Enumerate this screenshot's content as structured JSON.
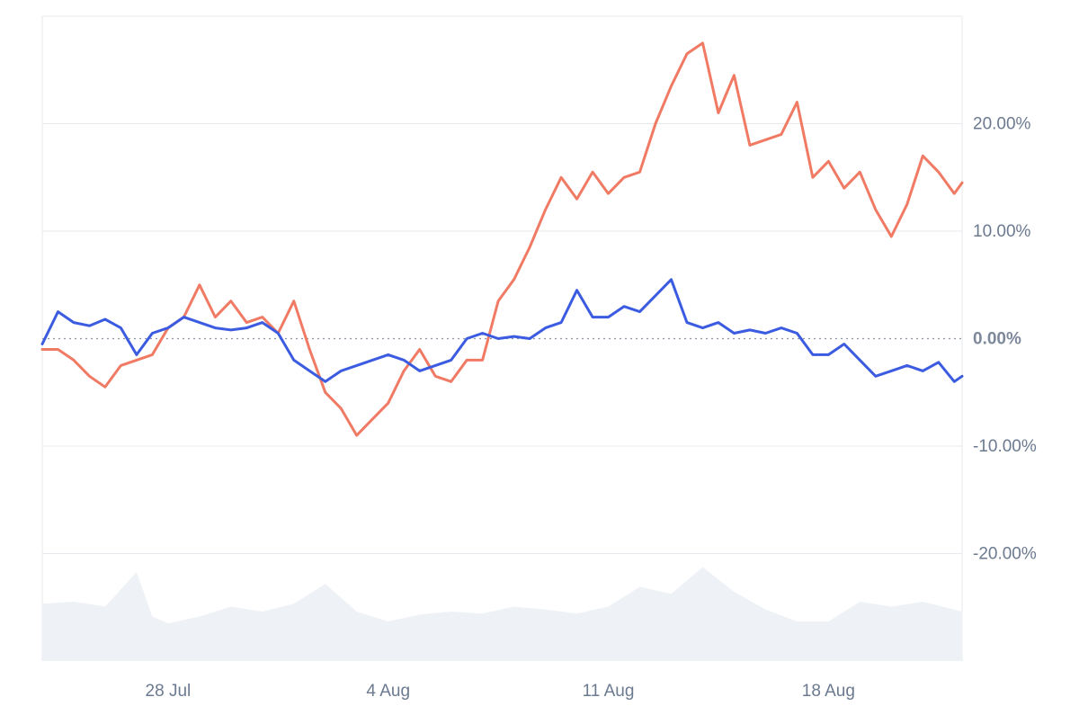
{
  "chart_data": {
    "type": "line",
    "title": "",
    "xlabel": "",
    "ylabel": "",
    "ylim": [
      -30,
      30
    ],
    "x_range": [
      "2024-07-24",
      "2024-08-22"
    ],
    "yticks": [
      20,
      10,
      0,
      -10,
      -20
    ],
    "ytick_labels": [
      "20.00%",
      "10.00%",
      "0.00%",
      "-10.00%",
      "-20.00%"
    ],
    "xticks": [
      "2024-07-28",
      "2024-08-04",
      "2024-08-11",
      "2024-08-18"
    ],
    "xtick_labels": [
      "28 Jul",
      "4 Aug",
      "11 Aug",
      "18 Aug"
    ],
    "grid": true,
    "zero_line": "dotted",
    "colors": {
      "series_1": "#3b5be0",
      "series_2": "#f07a63",
      "grid": "#e6e9ee",
      "tick_text": "#6b7a90",
      "volume_fill": "#eef1f5"
    },
    "series": [
      {
        "points": [
          [
            "2024-07-24T00:00",
            -0.5
          ],
          [
            "2024-07-24T12:00",
            2.5
          ],
          [
            "2024-07-25T00:00",
            1.5
          ],
          [
            "2024-07-25T12:00",
            1.2
          ],
          [
            "2024-07-26T00:00",
            1.8
          ],
          [
            "2024-07-26T12:00",
            1.0
          ],
          [
            "2024-07-27T00:00",
            -1.5
          ],
          [
            "2024-07-27T12:00",
            0.5
          ],
          [
            "2024-07-28T00:00",
            1.0
          ],
          [
            "2024-07-28T12:00",
            2.0
          ],
          [
            "2024-07-29T00:00",
            1.5
          ],
          [
            "2024-07-29T12:00",
            1.0
          ],
          [
            "2024-07-30T00:00",
            0.8
          ],
          [
            "2024-07-30T12:00",
            1.0
          ],
          [
            "2024-07-31T00:00",
            1.5
          ],
          [
            "2024-07-31T12:00",
            0.5
          ],
          [
            "2024-08-01T00:00",
            -2.0
          ],
          [
            "2024-08-01T12:00",
            -3.0
          ],
          [
            "2024-08-02T00:00",
            -4.0
          ],
          [
            "2024-08-02T12:00",
            -3.0
          ],
          [
            "2024-08-03T00:00",
            -2.5
          ],
          [
            "2024-08-03T12:00",
            -2.0
          ],
          [
            "2024-08-04T00:00",
            -1.5
          ],
          [
            "2024-08-04T12:00",
            -2.0
          ],
          [
            "2024-08-05T00:00",
            -3.0
          ],
          [
            "2024-08-05T12:00",
            -2.5
          ],
          [
            "2024-08-06T00:00",
            -2.0
          ],
          [
            "2024-08-06T12:00",
            0.0
          ],
          [
            "2024-08-07T00:00",
            0.5
          ],
          [
            "2024-08-07T12:00",
            0.0
          ],
          [
            "2024-08-08T00:00",
            0.2
          ],
          [
            "2024-08-08T12:00",
            0.0
          ],
          [
            "2024-08-09T00:00",
            1.0
          ],
          [
            "2024-08-09T12:00",
            1.5
          ],
          [
            "2024-08-10T00:00",
            4.5
          ],
          [
            "2024-08-10T12:00",
            2.0
          ],
          [
            "2024-08-11T00:00",
            2.0
          ],
          [
            "2024-08-11T12:00",
            3.0
          ],
          [
            "2024-08-12T00:00",
            2.5
          ],
          [
            "2024-08-12T12:00",
            4.0
          ],
          [
            "2024-08-13T00:00",
            5.5
          ],
          [
            "2024-08-13T12:00",
            1.5
          ],
          [
            "2024-08-14T00:00",
            1.0
          ],
          [
            "2024-08-14T12:00",
            1.5
          ],
          [
            "2024-08-15T00:00",
            0.5
          ],
          [
            "2024-08-15T12:00",
            0.8
          ],
          [
            "2024-08-16T00:00",
            0.5
          ],
          [
            "2024-08-16T12:00",
            1.0
          ],
          [
            "2024-08-17T00:00",
            0.5
          ],
          [
            "2024-08-17T12:00",
            -1.5
          ],
          [
            "2024-08-18T00:00",
            -1.5
          ],
          [
            "2024-08-18T12:00",
            -0.5
          ],
          [
            "2024-08-19T00:00",
            -2.0
          ],
          [
            "2024-08-19T12:00",
            -3.5
          ],
          [
            "2024-08-20T00:00",
            -3.0
          ],
          [
            "2024-08-20T12:00",
            -2.5
          ],
          [
            "2024-08-21T00:00",
            -3.0
          ],
          [
            "2024-08-21T12:00",
            -2.2
          ],
          [
            "2024-08-22T00:00",
            -4.0
          ],
          [
            "2024-08-22T06:00",
            -3.5
          ]
        ]
      },
      {
        "points": [
          [
            "2024-07-24T00:00",
            -1.0
          ],
          [
            "2024-07-24T12:00",
            -1.0
          ],
          [
            "2024-07-25T00:00",
            -2.0
          ],
          [
            "2024-07-25T12:00",
            -3.5
          ],
          [
            "2024-07-26T00:00",
            -4.5
          ],
          [
            "2024-07-26T12:00",
            -2.5
          ],
          [
            "2024-07-27T00:00",
            -2.0
          ],
          [
            "2024-07-27T12:00",
            -1.5
          ],
          [
            "2024-07-28T00:00",
            1.0
          ],
          [
            "2024-07-28T12:00",
            2.0
          ],
          [
            "2024-07-29T00:00",
            5.0
          ],
          [
            "2024-07-29T12:00",
            2.0
          ],
          [
            "2024-07-30T00:00",
            3.5
          ],
          [
            "2024-07-30T12:00",
            1.5
          ],
          [
            "2024-07-31T00:00",
            2.0
          ],
          [
            "2024-07-31T12:00",
            0.5
          ],
          [
            "2024-08-01T00:00",
            3.5
          ],
          [
            "2024-08-01T12:00",
            -1.0
          ],
          [
            "2024-08-02T00:00",
            -5.0
          ],
          [
            "2024-08-02T12:00",
            -6.5
          ],
          [
            "2024-08-03T00:00",
            -9.0
          ],
          [
            "2024-08-03T12:00",
            -7.5
          ],
          [
            "2024-08-04T00:00",
            -6.0
          ],
          [
            "2024-08-04T12:00",
            -3.0
          ],
          [
            "2024-08-05T00:00",
            -1.0
          ],
          [
            "2024-08-05T12:00",
            -3.5
          ],
          [
            "2024-08-06T00:00",
            -4.0
          ],
          [
            "2024-08-06T12:00",
            -2.0
          ],
          [
            "2024-08-07T00:00",
            -2.0
          ],
          [
            "2024-08-07T12:00",
            3.5
          ],
          [
            "2024-08-08T00:00",
            5.5
          ],
          [
            "2024-08-08T12:00",
            8.5
          ],
          [
            "2024-08-09T00:00",
            12.0
          ],
          [
            "2024-08-09T12:00",
            15.0
          ],
          [
            "2024-08-10T00:00",
            13.0
          ],
          [
            "2024-08-10T12:00",
            15.5
          ],
          [
            "2024-08-11T00:00",
            13.5
          ],
          [
            "2024-08-11T12:00",
            15.0
          ],
          [
            "2024-08-12T00:00",
            15.5
          ],
          [
            "2024-08-12T12:00",
            20.0
          ],
          [
            "2024-08-13T00:00",
            23.5
          ],
          [
            "2024-08-13T12:00",
            26.5
          ],
          [
            "2024-08-14T00:00",
            27.5
          ],
          [
            "2024-08-14T12:00",
            21.0
          ],
          [
            "2024-08-15T00:00",
            24.5
          ],
          [
            "2024-08-15T12:00",
            18.0
          ],
          [
            "2024-08-16T00:00",
            18.5
          ],
          [
            "2024-08-16T12:00",
            19.0
          ],
          [
            "2024-08-17T00:00",
            22.0
          ],
          [
            "2024-08-17T12:00",
            15.0
          ],
          [
            "2024-08-18T00:00",
            16.5
          ],
          [
            "2024-08-18T12:00",
            14.0
          ],
          [
            "2024-08-19T00:00",
            15.5
          ],
          [
            "2024-08-19T12:00",
            12.0
          ],
          [
            "2024-08-20T00:00",
            9.5
          ],
          [
            "2024-08-20T12:00",
            12.5
          ],
          [
            "2024-08-21T00:00",
            17.0
          ],
          [
            "2024-08-21T12:00",
            15.5
          ],
          [
            "2024-08-22T00:00",
            13.5
          ],
          [
            "2024-08-22T06:00",
            14.5
          ]
        ]
      }
    ],
    "volume_area": {
      "ylim": [
        0,
        100
      ],
      "points": [
        [
          "2024-07-24T00:00",
          58
        ],
        [
          "2024-07-25T00:00",
          60
        ],
        [
          "2024-07-26T00:00",
          55
        ],
        [
          "2024-07-27T00:00",
          90
        ],
        [
          "2024-07-27T12:00",
          45
        ],
        [
          "2024-07-28T00:00",
          38
        ],
        [
          "2024-07-29T00:00",
          45
        ],
        [
          "2024-07-30T00:00",
          55
        ],
        [
          "2024-07-31T00:00",
          50
        ],
        [
          "2024-08-01T00:00",
          58
        ],
        [
          "2024-08-02T00:00",
          78
        ],
        [
          "2024-08-03T00:00",
          50
        ],
        [
          "2024-08-04T00:00",
          40
        ],
        [
          "2024-08-05T00:00",
          47
        ],
        [
          "2024-08-06T00:00",
          50
        ],
        [
          "2024-08-07T00:00",
          48
        ],
        [
          "2024-08-08T00:00",
          55
        ],
        [
          "2024-08-09T00:00",
          52
        ],
        [
          "2024-08-10T00:00",
          48
        ],
        [
          "2024-08-11T00:00",
          55
        ],
        [
          "2024-08-12T00:00",
          75
        ],
        [
          "2024-08-13T00:00",
          68
        ],
        [
          "2024-08-14T00:00",
          95
        ],
        [
          "2024-08-15T00:00",
          70
        ],
        [
          "2024-08-16T00:00",
          52
        ],
        [
          "2024-08-17T00:00",
          40
        ],
        [
          "2024-08-18T00:00",
          40
        ],
        [
          "2024-08-19T00:00",
          60
        ],
        [
          "2024-08-20T00:00",
          55
        ],
        [
          "2024-08-21T00:00",
          60
        ],
        [
          "2024-08-22T06:00",
          50
        ]
      ]
    }
  }
}
